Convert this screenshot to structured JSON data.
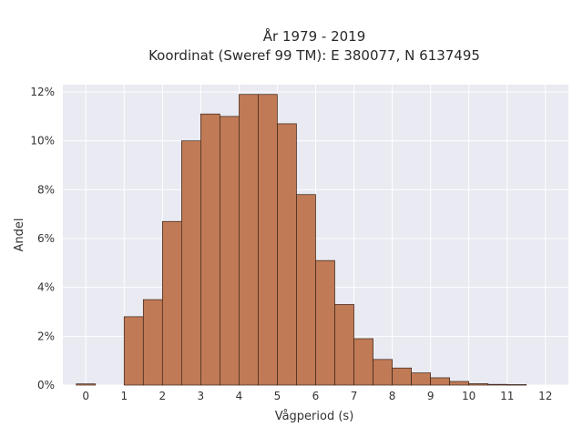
{
  "chart_data": {
    "type": "bar",
    "title": [
      "År 1979 - 2019",
      "Koordinat (Sweref 99 TM): E 380077, N 6137495"
    ],
    "xlabel": "Vågperiod (s)",
    "ylabel": "Andel",
    "xlim": [
      -0.6,
      12.6
    ],
    "ylim": [
      0,
      12.3
    ],
    "x_ticks": [
      0,
      1,
      2,
      3,
      4,
      5,
      6,
      7,
      8,
      9,
      10,
      11,
      12
    ],
    "y_ticks": [
      0,
      2,
      4,
      6,
      8,
      10,
      12
    ],
    "y_tick_labels": [
      "0%",
      "2%",
      "4%",
      "6%",
      "8%",
      "10%",
      "12%"
    ],
    "bin_width": 0.5,
    "bins": [
      {
        "start": -0.25,
        "value": 0.05
      },
      {
        "start": 1.0,
        "value": 2.8
      },
      {
        "start": 1.5,
        "value": 3.5
      },
      {
        "start": 2.0,
        "value": 6.7
      },
      {
        "start": 2.5,
        "value": 10.0
      },
      {
        "start": 3.0,
        "value": 11.1
      },
      {
        "start": 3.5,
        "value": 11.0
      },
      {
        "start": 4.0,
        "value": 11.9
      },
      {
        "start": 4.5,
        "value": 11.9
      },
      {
        "start": 5.0,
        "value": 10.7
      },
      {
        "start": 5.5,
        "value": 7.8
      },
      {
        "start": 6.0,
        "value": 5.1
      },
      {
        "start": 6.5,
        "value": 3.3
      },
      {
        "start": 7.0,
        "value": 1.9
      },
      {
        "start": 7.5,
        "value": 1.05
      },
      {
        "start": 8.0,
        "value": 0.7
      },
      {
        "start": 8.5,
        "value": 0.5
      },
      {
        "start": 9.0,
        "value": 0.3
      },
      {
        "start": 9.5,
        "value": 0.15
      },
      {
        "start": 10.0,
        "value": 0.06
      },
      {
        "start": 10.5,
        "value": 0.03
      },
      {
        "start": 11.0,
        "value": 0.02
      }
    ],
    "grid": true,
    "colors": {
      "bar_fill": "#c07a55",
      "bar_edge": "#3a2418",
      "plot_background": "#e9eaf2",
      "grid": "#ffffff"
    }
  }
}
